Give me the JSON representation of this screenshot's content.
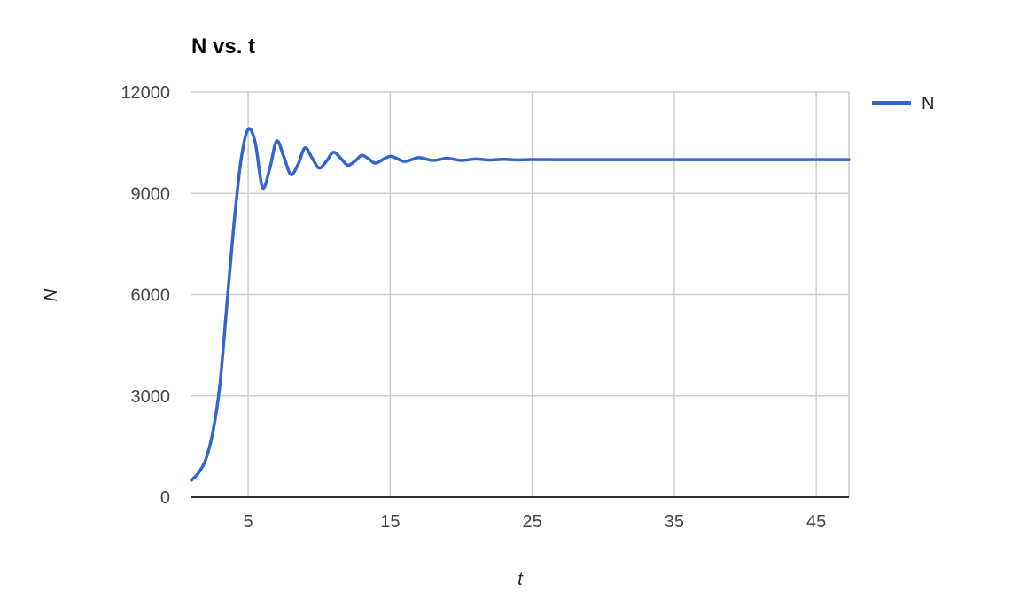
{
  "chart_data": {
    "type": "line",
    "title": "N vs. t",
    "xlabel": "t",
    "ylabel": "N",
    "xlim": [
      1,
      47.3
    ],
    "ylim": [
      0,
      12000
    ],
    "xticks": [
      5,
      15,
      25,
      35,
      45
    ],
    "yticks": [
      0,
      3000,
      6000,
      9000,
      12000
    ],
    "grid": true,
    "legend": "right",
    "colors": {
      "series": "#3366cc"
    },
    "series": [
      {
        "name": "N",
        "x": [
          1,
          1.5,
          2,
          2.5,
          3,
          3.5,
          4,
          4.5,
          5,
          5.5,
          6,
          6.5,
          7,
          7.5,
          8,
          8.5,
          9,
          9.5,
          10,
          10.5,
          11,
          11.5,
          12,
          12.5,
          13,
          13.5,
          14,
          15,
          16,
          17,
          18,
          19,
          20,
          21,
          22,
          23,
          24,
          25,
          27,
          29,
          31,
          35,
          40,
          45,
          47.3
        ],
        "values": [
          500,
          720,
          1100,
          1900,
          3300,
          5700,
          8100,
          10000,
          10900,
          10500,
          9180,
          9700,
          10550,
          10100,
          9560,
          9850,
          10350,
          10050,
          9750,
          9950,
          10220,
          10050,
          9840,
          9950,
          10130,
          10020,
          9900,
          10100,
          9950,
          10060,
          9980,
          10040,
          9980,
          10020,
          9990,
          10010,
          9995,
          10005,
          10000,
          10000,
          10000,
          10000,
          10000,
          10000,
          10000
        ]
      }
    ]
  }
}
